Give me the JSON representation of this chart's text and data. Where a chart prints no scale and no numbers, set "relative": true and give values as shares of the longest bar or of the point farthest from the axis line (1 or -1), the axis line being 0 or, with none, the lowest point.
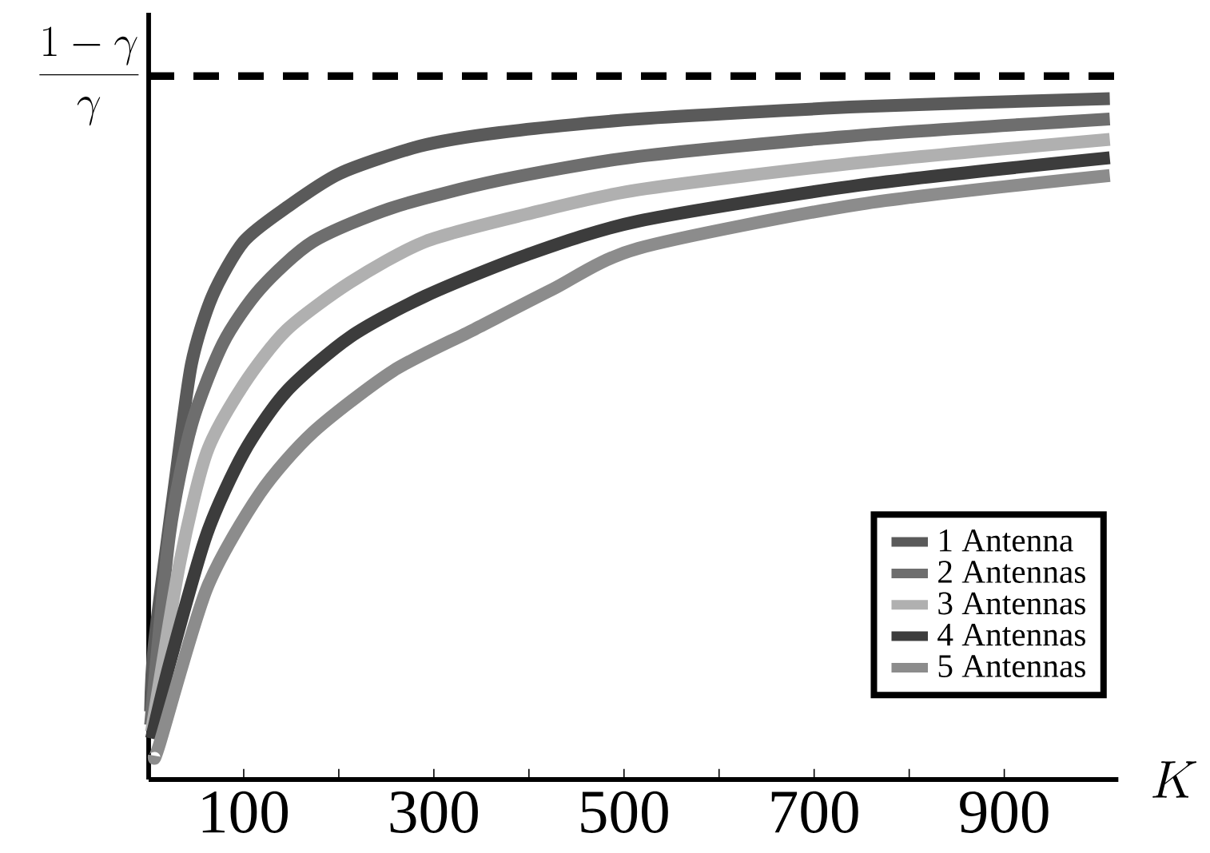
{
  "chart_data": {
    "type": "line",
    "relative": true,
    "xlabel": "K",
    "xlim": [
      0,
      1020
    ],
    "xticks": [
      100,
      {
        "value": 200,
        "label": null
      },
      300,
      {
        "value": 400,
        "label": null
      },
      500,
      {
        "value": 600,
        "label": null
      },
      700,
      {
        "value": 800,
        "label": null
      },
      900
    ],
    "legend": "bottom right",
    "line_style": "solid",
    "ref_lines": [
      {
        "axis": "y",
        "value": 1.033,
        "label": "\\frac{1-\\gamma}{\\gamma}",
        "line_style": "dashed",
        "color": "#000000"
      }
    ],
    "series": [
      {
        "name": "1 Antenna",
        "color": "#5a5a5a",
        "x": [
          2,
          6,
          28,
          45,
          67,
          100,
          145,
          201,
          285,
          369,
          515,
          749,
          1011
        ],
        "values": [
          0.1,
          0.2,
          0.44,
          0.61,
          0.71,
          0.79,
          0.84,
          0.89,
          0.93,
          0.95,
          0.97,
          0.988,
          1.0
        ]
      },
      {
        "name": "2 Antennas",
        "color": "#6e6e6e",
        "x": [
          2,
          22,
          45,
          78,
          117,
          173,
          257,
          369,
          515,
          749,
          1011
        ],
        "values": [
          0.08,
          0.36,
          0.52,
          0.64,
          0.72,
          0.79,
          0.84,
          0.88,
          0.915,
          0.946,
          0.97
        ]
      },
      {
        "name": "3 Antennas",
        "color": "#b0b0b0",
        "x": [
          3,
          33,
          61,
          100,
          145,
          212,
          291,
          397,
          515,
          749,
          1011
        ],
        "values": [
          0.07,
          0.32,
          0.48,
          0.58,
          0.66,
          0.73,
          0.79,
          0.83,
          0.866,
          0.906,
          0.94
        ]
      },
      {
        "name": "4 Antennas",
        "color": "#3c3c3c",
        "x": [
          3,
          22,
          61,
          100,
          145,
          212,
          291,
          397,
          515,
          749,
          1011
        ],
        "values": [
          0.06,
          0.17,
          0.36,
          0.48,
          0.57,
          0.65,
          0.71,
          0.77,
          0.82,
          0.873,
          0.913
        ]
      },
      {
        "name": "5 Antennas",
        "color": "#8c8c8c",
        "x": [
          6,
          11,
          61,
          117,
          173,
          257,
          341,
          425,
          515,
          749,
          1011
        ],
        "values": [
          0.035,
          0.05,
          0.28,
          0.42,
          0.51,
          0.6,
          0.66,
          0.72,
          0.78,
          0.845,
          0.887
        ]
      }
    ]
  }
}
